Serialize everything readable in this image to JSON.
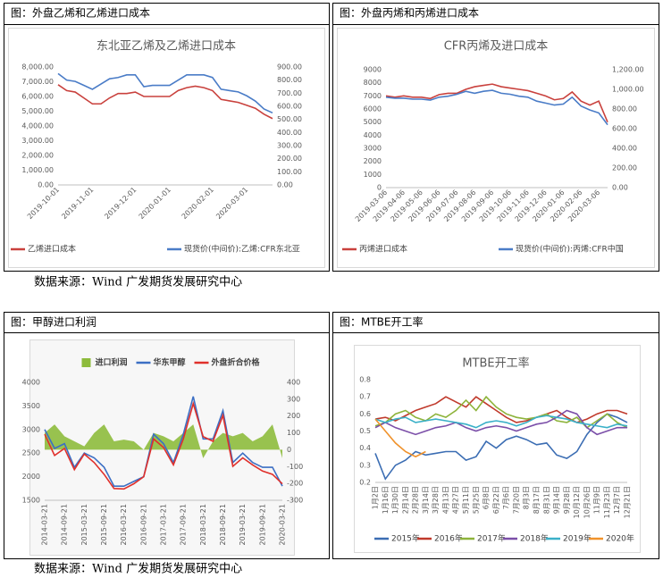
{
  "panels": [
    {
      "caption": "图：外盘乙烯和乙烯进口成本"
    },
    {
      "caption": "图：外盘丙烯和丙烯进口成本"
    },
    {
      "caption": "图：甲醇进口利润"
    },
    {
      "caption": "图：MTBE开工率"
    }
  ],
  "sources": [
    "数据来源：Wind 广发期货发展研究中心",
    "数据来源：Wind 广发期货发展研究中心"
  ],
  "chart_data": [
    {
      "type": "line",
      "title": "东北亚乙烯及乙烯进口成本",
      "legend": "bottom",
      "grid": false,
      "categories": [
        "2019-10-01",
        null,
        null,
        null,
        "2019-11-01",
        null,
        null,
        null,
        null,
        "2019-12-01",
        null,
        null,
        null,
        "2020-01-01",
        null,
        null,
        null,
        null,
        "2020-02-01",
        null,
        null,
        null,
        "2020-03-01",
        null,
        null,
        null
      ],
      "ylim": [
        0,
        8000
      ],
      "yticks": [
        {
          "value": 0,
          "label": "0.00"
        },
        {
          "value": 1000,
          "label": "1,000.00"
        },
        {
          "value": 2000,
          "label": "2,000.00"
        },
        {
          "value": 3000,
          "label": "3,000.00"
        },
        {
          "value": 4000,
          "label": "4,000.00"
        },
        {
          "value": 5000,
          "label": "5,000.00"
        },
        {
          "value": 6000,
          "label": "6,000.00"
        },
        {
          "value": 7000,
          "label": "7,000.00"
        },
        {
          "value": 8000,
          "label": "8,000.00"
        }
      ],
      "y2lim": [
        0,
        900
      ],
      "y2ticks": [
        {
          "value": 0,
          "label": "0.00"
        },
        {
          "value": 100,
          "label": "100.00"
        },
        {
          "value": 200,
          "label": "200.00"
        },
        {
          "value": 300,
          "label": "300.00"
        },
        {
          "value": 400,
          "label": "400.00"
        },
        {
          "value": 500,
          "label": "500.00"
        },
        {
          "value": 600,
          "label": "600.00"
        },
        {
          "value": 700,
          "label": "700.00"
        },
        {
          "value": 800,
          "label": "800.00"
        },
        {
          "value": 900,
          "label": "900.00"
        }
      ],
      "series": [
        {
          "name": "乙烯进口成本",
          "color": "#c9413d",
          "values": [
            6800,
            6400,
            6300,
            5900,
            5500,
            5500,
            5900,
            6200,
            6200,
            6300,
            6000,
            6000,
            6000,
            6000,
            6400,
            6600,
            6700,
            6600,
            6400,
            5800,
            5700,
            5600,
            5400,
            5200,
            4800,
            4500
          ]
        },
        {
          "name": "现货价(中间价):乙烯:CFR东北亚",
          "color": "#4a7cc7",
          "axis": "y2",
          "values": [
            850,
            800,
            790,
            760,
            730,
            770,
            810,
            820,
            840,
            840,
            750,
            760,
            760,
            760,
            800,
            840,
            840,
            840,
            820,
            730,
            720,
            710,
            680,
            640,
            580,
            550
          ]
        }
      ]
    },
    {
      "type": "line",
      "title": "CFR丙烯及进口成本",
      "legend": "bottom",
      "grid": false,
      "categories": [
        "2019-03-06",
        null,
        "2019-04-06",
        null,
        "2019-05-06",
        null,
        "2019-06-06",
        null,
        "2019-07-06",
        null,
        "2019-08-06",
        null,
        "2019-09-06",
        null,
        "2019-10-06",
        null,
        "2019-11-06",
        null,
        "2019-12-06",
        null,
        "2020-01-06",
        null,
        "2020-02-06",
        null,
        "2020-03-06",
        null
      ],
      "ylim": [
        0,
        9000
      ],
      "yticks": [
        0,
        1000,
        2000,
        3000,
        4000,
        5000,
        6000,
        7000,
        8000,
        9000
      ],
      "y2lim": [
        0,
        1200
      ],
      "y2ticks": [
        {
          "value": 0,
          "label": "0.00"
        },
        {
          "value": 200,
          "label": "200.00"
        },
        {
          "value": 400,
          "label": "400.00"
        },
        {
          "value": 600,
          "label": "600.00"
        },
        {
          "value": 800,
          "label": "800.00"
        },
        {
          "value": 1000,
          "label": "1,000.00"
        },
        {
          "value": 1200,
          "label": "1,200.00"
        }
      ],
      "series": [
        {
          "name": "丙烯进口成本",
          "color": "#c9413d",
          "values": [
            7000,
            6900,
            7000,
            6900,
            6900,
            6800,
            7100,
            7200,
            7200,
            7500,
            7700,
            7800,
            7900,
            7700,
            7600,
            7500,
            7400,
            7200,
            7000,
            6700,
            6800,
            7300,
            6600,
            6300,
            6600,
            5000
          ]
        },
        {
          "name": "现货价(中间价):丙烯:CFR中国",
          "color": "#4a7cc7",
          "axis": "y2",
          "values": [
            920,
            910,
            910,
            900,
            900,
            890,
            920,
            930,
            950,
            980,
            960,
            980,
            990,
            960,
            950,
            930,
            920,
            880,
            860,
            840,
            850,
            920,
            830,
            790,
            760,
            640
          ]
        }
      ]
    },
    {
      "type": "combo",
      "legend": "top",
      "grid": false,
      "categories": [
        "2014-03-21",
        null,
        "2014-09-21",
        null,
        "2015-03-21",
        null,
        "2015-09-21",
        null,
        "2016-03-21",
        null,
        "2016-09-21",
        null,
        "2017-03-21",
        null,
        "2017-09-21",
        null,
        "2018-03-21",
        null,
        "2018-09-21",
        null,
        "2019-03-21",
        null,
        "2019-09-21",
        null,
        "2020-03-21"
      ],
      "ylim": [
        1500,
        4000
      ],
      "yticks": [
        1500,
        2000,
        2500,
        3000,
        3500,
        4000
      ],
      "y2lim": [
        -300,
        400
      ],
      "y2ticks": [
        -300,
        -200,
        -100,
        0,
        100,
        200,
        300,
        400
      ],
      "series": [
        {
          "name": "进口利润",
          "color": "#8dbb3c",
          "axis": "y2",
          "style": "area",
          "values": [
            100,
            150,
            80,
            50,
            20,
            100,
            150,
            50,
            60,
            50,
            0,
            100,
            80,
            50,
            100,
            150,
            -50,
            50,
            100,
            80,
            100,
            50,
            80,
            150,
            -50
          ]
        },
        {
          "name": "华东甲醇",
          "color": "#3c6fc4",
          "values": [
            3000,
            2600,
            2700,
            2200,
            2500,
            2400,
            2200,
            1800,
            1800,
            1900,
            2000,
            2900,
            2700,
            2300,
            2900,
            3700,
            2800,
            2800,
            3400,
            2300,
            2500,
            2300,
            2200,
            2200,
            1800
          ]
        },
        {
          "name": "外盘折合价格",
          "color": "#e0302b",
          "values": [
            2900,
            2450,
            2600,
            2150,
            2480,
            2300,
            2050,
            1750,
            1740,
            1850,
            2000,
            2800,
            2620,
            2250,
            2800,
            3550,
            2850,
            2750,
            3300,
            2220,
            2400,
            2250,
            2120,
            2050,
            1850
          ]
        }
      ]
    },
    {
      "type": "line",
      "title": "MTBE开工率",
      "legend": "bottom",
      "grid": false,
      "categories": [
        "1月2日",
        "1月16日",
        "1月30日",
        "2月14日",
        "2月28日",
        "3月14日",
        "3月28日",
        "4月13日",
        "4月27日",
        "5月11日",
        "5月25日",
        "6月8日",
        "6月22日",
        "7月6日",
        "7月20日",
        "8月3日",
        "8月17日",
        "8月31日",
        "9月14日",
        "9月28日",
        "10月12日",
        "10月26日",
        "11月9日",
        "11月23日",
        "12月7日",
        "12月21日"
      ],
      "ylim": [
        0.2,
        0.8
      ],
      "yticks": [
        0.2,
        0.3,
        0.4,
        0.5,
        0.6,
        0.7,
        0.8
      ],
      "series": [
        {
          "name": "2015年",
          "color": "#3b6db3",
          "values": [
            0.37,
            0.22,
            0.3,
            0.33,
            0.38,
            0.36,
            0.37,
            0.38,
            0.38,
            0.33,
            0.35,
            0.44,
            0.4,
            0.45,
            0.47,
            0.45,
            0.42,
            0.43,
            0.36,
            0.34,
            0.38,
            0.48,
            0.55,
            0.6,
            0.58,
            0.55
          ]
        },
        {
          "name": "2016年",
          "color": "#c0392b",
          "values": [
            0.57,
            0.58,
            0.56,
            0.59,
            0.62,
            0.64,
            0.66,
            0.7,
            0.67,
            0.64,
            0.7,
            0.66,
            0.62,
            0.58,
            0.55,
            0.56,
            0.58,
            0.6,
            0.62,
            0.58,
            0.55,
            0.57,
            0.6,
            0.62,
            0.62,
            0.6
          ]
        },
        {
          "name": "2017年",
          "color": "#8db33a",
          "values": [
            0.53,
            0.55,
            0.6,
            0.62,
            0.58,
            0.56,
            0.6,
            0.58,
            0.62,
            0.68,
            0.62,
            0.7,
            0.64,
            0.6,
            0.58,
            0.57,
            0.58,
            0.6,
            0.56,
            0.55,
            0.58,
            0.52,
            0.56,
            0.6,
            0.55,
            0.52
          ]
        },
        {
          "name": "2018年",
          "color": "#7b4ea8",
          "values": [
            0.52,
            0.55,
            0.52,
            0.5,
            0.48,
            0.5,
            0.52,
            0.53,
            0.55,
            0.52,
            0.5,
            0.52,
            0.53,
            0.52,
            0.5,
            0.52,
            0.54,
            0.55,
            0.58,
            0.62,
            0.6,
            0.52,
            0.48,
            0.5,
            0.52,
            0.52
          ]
        },
        {
          "name": "2019年",
          "color": "#3ab0c8",
          "values": [
            0.57,
            0.55,
            0.57,
            0.58,
            0.55,
            0.56,
            0.57,
            0.56,
            0.55,
            0.54,
            0.52,
            0.55,
            0.56,
            0.55,
            0.53,
            0.55,
            0.58,
            0.59,
            0.58,
            0.57,
            0.55,
            0.54,
            0.53,
            0.52,
            0.54,
            0.53
          ]
        },
        {
          "name": "2020年",
          "color": "#f0922b",
          "values": [
            0.57,
            0.5,
            0.43,
            0.38,
            0.35,
            0.38,
            null,
            null,
            null,
            null,
            null,
            null,
            null,
            null,
            null,
            null,
            null,
            null,
            null,
            null,
            null,
            null,
            null,
            null,
            null,
            null
          ]
        }
      ]
    }
  ]
}
